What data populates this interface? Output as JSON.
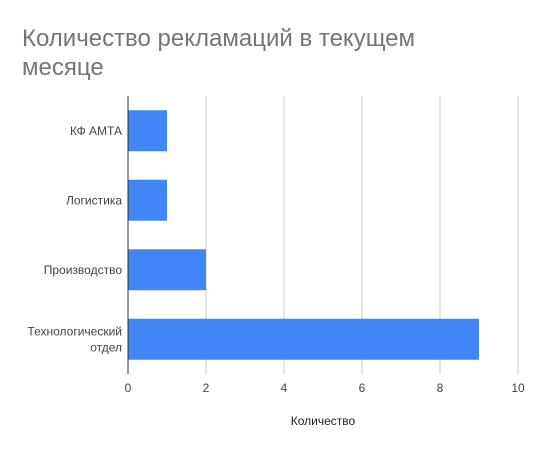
{
  "chart_data": {
    "type": "bar",
    "orientation": "horizontal",
    "title": "Количество рекламаций в текущем месяце",
    "categories": [
      [
        "КФ АМТА"
      ],
      [
        "Логистика"
      ],
      [
        "Производство"
      ],
      [
        "Технологический",
        "отдел"
      ]
    ],
    "values": [
      1,
      1,
      2,
      9
    ],
    "xlabel": "Количество",
    "ylabel": "",
    "xlim": [
      0,
      10
    ],
    "x_ticks": [
      "0",
      "2",
      "4",
      "6",
      "8",
      "10"
    ],
    "grid": true,
    "legend": "none",
    "bar_color": "#4285F4"
  }
}
